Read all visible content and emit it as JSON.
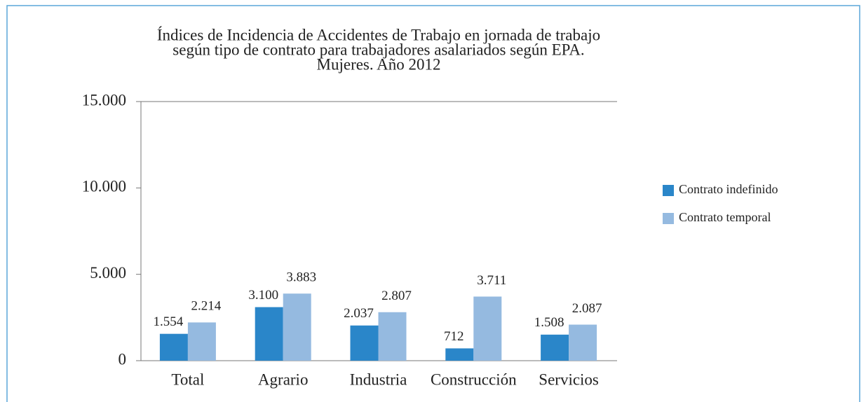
{
  "chart_data": {
    "type": "bar",
    "title": [
      "Índices de Incidencia de Accidentes de Trabajo en jornada de trabajo",
      "según tipo de contrato para trabajadores asalariados según EPA.",
      "Mujeres. Año 2012"
    ],
    "categories": [
      "Total",
      "Agrario",
      "Industria",
      "Construcción",
      "Servicios"
    ],
    "series": [
      {
        "name": "Contrato indefinido",
        "color": "#2a86c9",
        "values": [
          1554,
          3100,
          2037,
          712,
          1508
        ],
        "value_labels": [
          "1.554",
          "3.100",
          "2.037",
          "712",
          "1.508"
        ]
      },
      {
        "name": "Contrato temporal",
        "color": "#95bae0",
        "values": [
          2214,
          3883,
          2807,
          3711,
          2087
        ],
        "value_labels": [
          "2.214",
          "3.883",
          "2.807",
          "3.711",
          "2.087"
        ]
      }
    ],
    "ylim": [
      0,
      15000
    ],
    "yticks": [
      0,
      {
        "value": 5000,
        "label": "5.000"
      },
      {
        "value": 10000,
        "label": "10.000"
      },
      {
        "value": 15000,
        "label": "15.000"
      }
    ],
    "grid": false,
    "legend": "right"
  }
}
